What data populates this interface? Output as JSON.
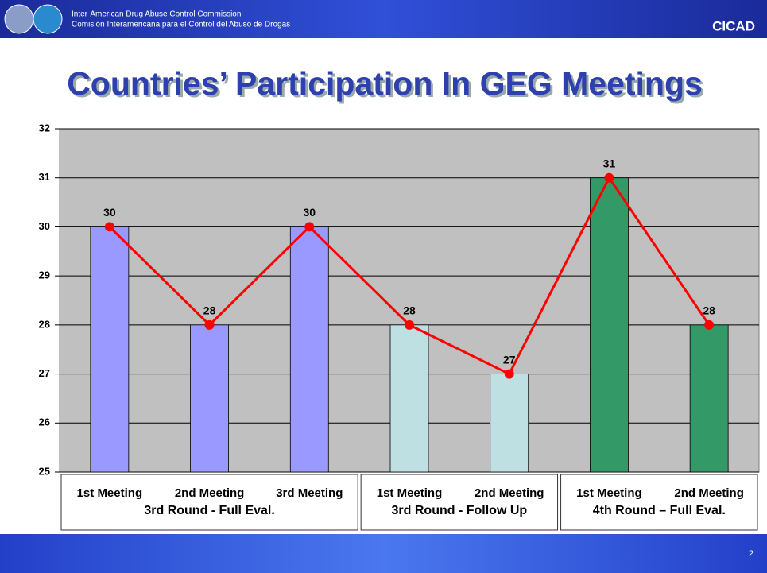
{
  "header": {
    "line1": "Inter-American Drug Abuse Control Commission",
    "line2": "Comisión Interamericana para el Control del Abuso de Drogas",
    "brand": "CICAD"
  },
  "footer": {
    "page": "2"
  },
  "chart_data": {
    "type": "bar",
    "title": "Countries’ Participation In GEG Meetings",
    "groups": [
      {
        "name": "3rd Round - Full Eval.",
        "categories": [
          "1st Meeting",
          "2nd Meeting",
          "3rd Meeting"
        ],
        "color": "#9999ff"
      },
      {
        "name": "3rd Round - Follow Up",
        "categories": [
          "1st Meeting",
          "2nd Meeting"
        ],
        "color": "#bfe0e3"
      },
      {
        "name": "4th Round – Full Eval.",
        "categories": [
          "1st Meeting",
          "2nd Meeting"
        ],
        "color": "#339966"
      }
    ],
    "values": [
      30,
      28,
      30,
      28,
      27,
      31,
      28
    ],
    "line_color": "#ff0000",
    "ylim": [
      25,
      32
    ],
    "yticks": [
      25,
      26,
      27,
      28,
      29,
      30,
      31,
      32
    ],
    "grid": true
  }
}
